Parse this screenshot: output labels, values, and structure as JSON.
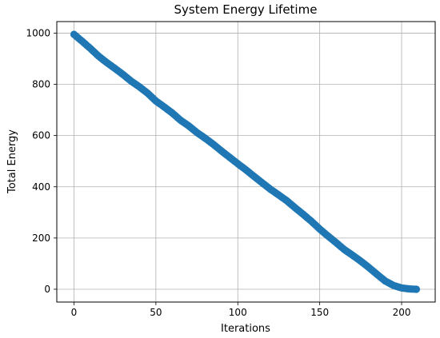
{
  "chart_data": {
    "type": "scatter",
    "title": "System Energy Lifetime",
    "xlabel": "Iterations",
    "ylabel": "Total Energy",
    "xlim": [
      -10.5,
      220.5
    ],
    "ylim": [
      -50,
      1045
    ],
    "xticks": [
      0,
      50,
      100,
      150,
      200
    ],
    "yticks": [
      0,
      200,
      400,
      600,
      800,
      1000
    ],
    "grid": true,
    "marker_color": "#1f77b4",
    "series": [
      {
        "x": [
          0,
          5,
          10,
          15,
          20,
          25,
          30,
          35,
          40,
          45,
          50,
          55,
          60,
          65,
          70,
          75,
          80,
          85,
          90,
          95,
          100,
          105,
          110,
          115,
          120,
          125,
          130,
          135,
          140,
          145,
          150,
          155,
          160,
          165,
          170,
          175,
          180,
          185,
          190,
          195,
          200,
          205,
          209
        ],
        "y": [
          995,
          968,
          940,
          910,
          885,
          862,
          838,
          812,
          790,
          765,
          735,
          712,
          688,
          660,
          638,
          612,
          590,
          566,
          540,
          515,
          490,
          466,
          440,
          415,
          390,
          368,
          345,
          318,
          292,
          265,
          235,
          208,
          182,
          155,
          133,
          110,
          85,
          58,
          32,
          15,
          5,
          1,
          0
        ]
      }
    ]
  }
}
